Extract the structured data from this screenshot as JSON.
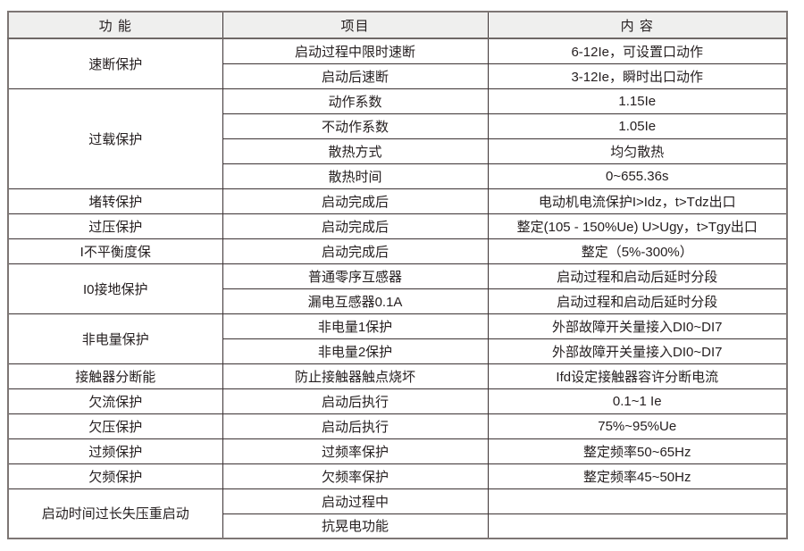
{
  "table": {
    "headers": {
      "function": "功 能",
      "item": "项目",
      "content": "内 容"
    },
    "groups": [
      {
        "function": "速断保护",
        "rows": [
          {
            "item": "启动过程中限时速断",
            "content": "6-12Ie，可设置口动作"
          },
          {
            "item": "启动后速断",
            "content": "3-12Ie，瞬时出口动作"
          }
        ]
      },
      {
        "function": "过载保护",
        "rows": [
          {
            "item": "动作系数",
            "content": "1.15Ie"
          },
          {
            "item": "不动作系数",
            "content": "1.05Ie"
          },
          {
            "item": "散热方式",
            "content": "均匀散热"
          },
          {
            "item": "散热时间",
            "content": "0~655.36s"
          }
        ]
      },
      {
        "function": "堵转保护",
        "rows": [
          {
            "item": "启动完成后",
            "content": "电动机电流保护I>Idz，t>Tdz出口"
          }
        ]
      },
      {
        "function": "过压保护",
        "rows": [
          {
            "item": "启动完成后",
            "content": "整定(105 - 150%Ue) U>Ugy，t>Tgy出口"
          }
        ]
      },
      {
        "function": "I不平衡度保",
        "rows": [
          {
            "item": "启动完成后",
            "content": "整定（5%-300%）"
          }
        ]
      },
      {
        "function": "I0接地保护",
        "rows": [
          {
            "item": "普通零序互感器",
            "content": "启动过程和启动后延时分段"
          },
          {
            "item": "漏电互感器0.1A",
            "content": "启动过程和启动后延时分段"
          }
        ]
      },
      {
        "function": "非电量保护",
        "rows": [
          {
            "item": "非电量1保护",
            "content": "外部故障开关量接入DI0~DI7"
          },
          {
            "item": "非电量2保护",
            "content": "外部故障开关量接入DI0~DI7"
          }
        ]
      },
      {
        "function": "接触器分断能",
        "rows": [
          {
            "item": "防止接触器触点烧坏",
            "content": "Ifd设定接触器容许分断电流"
          }
        ]
      },
      {
        "function": "欠流保护",
        "rows": [
          {
            "item": "启动后执行",
            "content": "0.1~1 Ie"
          }
        ]
      },
      {
        "function": "欠压保护",
        "rows": [
          {
            "item": "启动后执行",
            "content": "75%~95%Ue"
          }
        ]
      },
      {
        "function": "过频保护",
        "rows": [
          {
            "item": "过频率保护",
            "content": "整定频率50~65Hz"
          }
        ]
      },
      {
        "function": "欠频保护",
        "rows": [
          {
            "item": "欠频率保护",
            "content": "整定频率45~50Hz"
          }
        ]
      },
      {
        "function": "启动时间过长失压重启动",
        "rows": [
          {
            "item": "启动过程中",
            "content": ""
          },
          {
            "item": "抗晃电功能",
            "content": ""
          }
        ]
      }
    ]
  },
  "colors": {
    "header_bg": "#efefee",
    "inner_border": "#3c3334",
    "outer_border": "#7d7674",
    "text": "#262021"
  }
}
